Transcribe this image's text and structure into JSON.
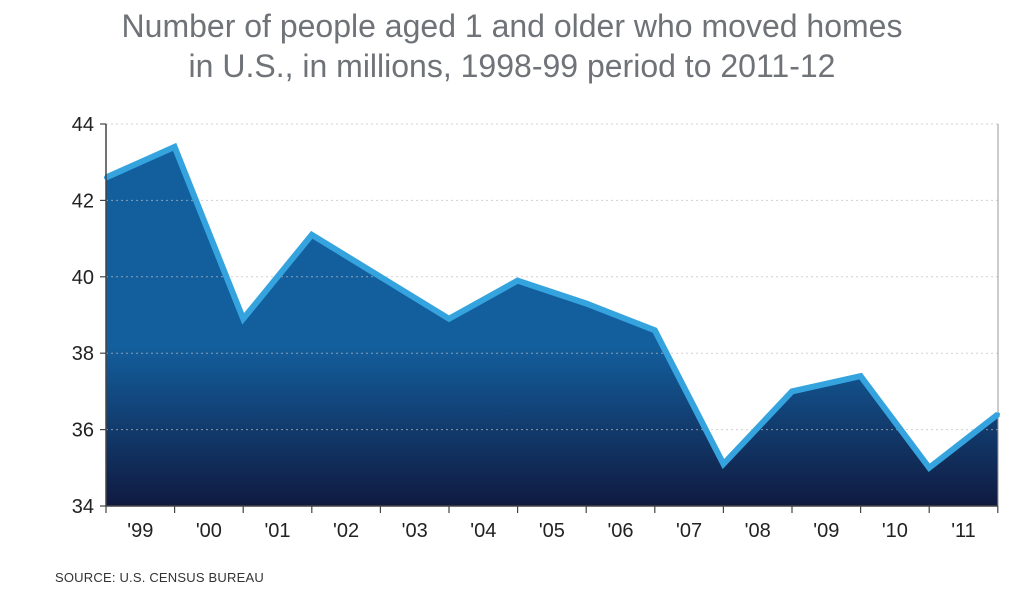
{
  "chart_data": {
    "type": "area",
    "title_line1": "Number of people aged 1 and older who moved homes",
    "title_line2": "in U.S., in millions, 1998-99 period to 2011-12",
    "x_tick_labels": [
      "'99",
      "'00",
      "'01",
      "'02",
      "'03",
      "'04",
      "'05",
      "'06",
      "'07",
      "'08",
      "'09",
      "'10",
      "'11"
    ],
    "y_tick_labels": [
      "34",
      "36",
      "38",
      "40",
      "42",
      "44"
    ],
    "ylim": [
      34,
      44
    ],
    "grid": true,
    "points": [
      {
        "x": "start",
        "y": 42.6
      },
      {
        "x": "'99",
        "y": 43.4
      },
      {
        "x": "'00",
        "y": 38.9
      },
      {
        "x": "'01",
        "y": 41.1
      },
      {
        "x": "'02",
        "y": 40.0
      },
      {
        "x": "'03",
        "y": 38.9
      },
      {
        "x": "'04",
        "y": 39.9
      },
      {
        "x": "'05",
        "y": 39.3
      },
      {
        "x": "'06",
        "y": 38.6
      },
      {
        "x": "'07",
        "y": 35.1
      },
      {
        "x": "'08",
        "y": 37.0
      },
      {
        "x": "'09",
        "y": 37.4
      },
      {
        "x": "'10",
        "y": 35.0
      },
      {
        "x": "end",
        "y": 36.4
      }
    ],
    "colors": {
      "line": "#35a4de",
      "fill_top": "#135f9e",
      "fill_bottom": "#101a40",
      "grid": "#bdbdbd",
      "axis": "#444444"
    }
  },
  "source": "SOURCE: U.S. CENSUS BUREAU"
}
